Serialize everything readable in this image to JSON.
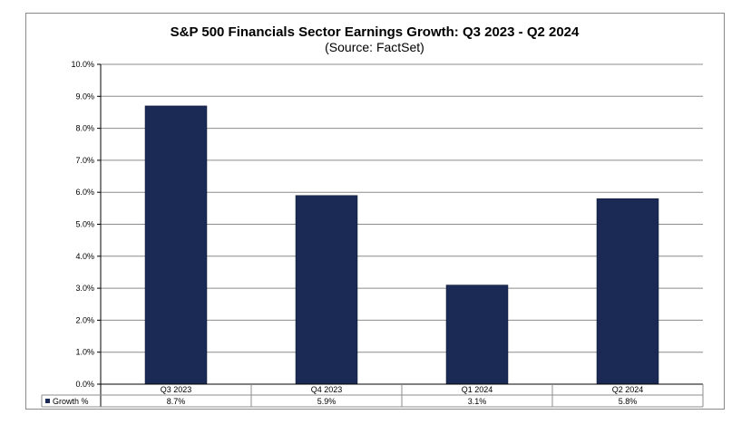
{
  "chart_data": {
    "type": "bar",
    "title": "S&P 500 Financials Sector Earnings Growth: Q3 2023 - Q2 2024",
    "subtitle": "(Source: FactSet)",
    "categories": [
      "Q3 2023",
      "Q4 2023",
      "Q1 2024",
      "Q2 2024"
    ],
    "series": [
      {
        "name": "Growth %",
        "values": [
          8.7,
          5.9,
          3.1,
          5.8
        ],
        "labels": [
          "8.7%",
          "5.9%",
          "3.1%",
          "5.8%"
        ],
        "color": "#1b2a55"
      }
    ],
    "ylim": [
      0,
      10
    ],
    "yticks": [
      "0.0%",
      "1.0%",
      "2.0%",
      "3.0%",
      "4.0%",
      "5.0%",
      "6.0%",
      "7.0%",
      "8.0%",
      "9.0%",
      "10.0%"
    ],
    "grid": true,
    "xlabel": "",
    "ylabel": "",
    "legend": "data-table"
  }
}
